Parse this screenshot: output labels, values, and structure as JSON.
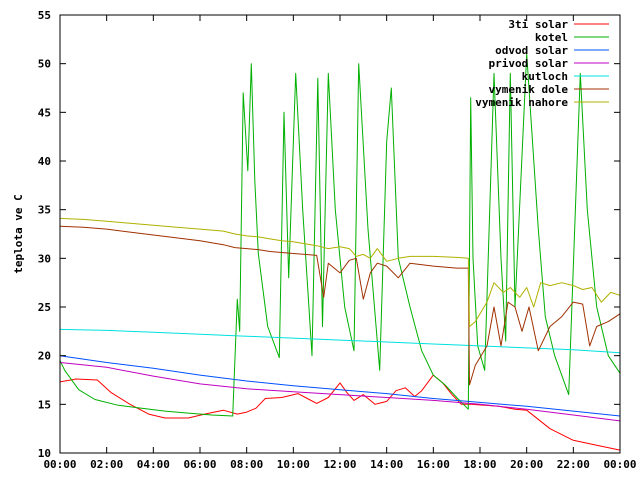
{
  "chart_data": {
    "type": "line",
    "title": "",
    "xlabel": "",
    "ylabel": "teplota ve C",
    "xlim": [
      0,
      24
    ],
    "ylim": [
      10,
      55
    ],
    "xticks": [
      "00:00",
      "02:00",
      "04:00",
      "06:00",
      "08:00",
      "10:00",
      "12:00",
      "14:00",
      "16:00",
      "18:00",
      "20:00",
      "22:00",
      "00:00"
    ],
    "yticks": [
      "10",
      "15",
      "20",
      "25",
      "30",
      "35",
      "40",
      "45",
      "50",
      "55"
    ],
    "grid": false,
    "legend_position": "top-right",
    "series": [
      {
        "name": "3ti solar",
        "color": "#ff0000",
        "x": [
          0,
          0.7,
          1.6,
          2.2,
          3.0,
          3.8,
          4.5,
          5.5,
          6.2,
          7.0,
          7.6,
          8.0,
          8.4,
          8.8,
          9.5,
          10.2,
          10.6,
          11.0,
          11.5,
          12.0,
          12.3,
          12.6,
          13.0,
          13.5,
          14.0,
          14.4,
          14.8,
          15.2,
          15.5,
          16.0,
          16.4,
          16.8,
          17.2,
          17.6,
          18.2,
          18.8,
          19.5,
          20.0,
          21.0,
          22.0,
          23.0,
          24
        ],
        "y": [
          17.3,
          17.6,
          17.5,
          16.2,
          15.0,
          14.0,
          13.6,
          13.6,
          14.0,
          14.4,
          14.0,
          14.2,
          14.6,
          15.6,
          15.7,
          16.1,
          15.6,
          15.1,
          15.7,
          17.2,
          16.2,
          15.4,
          16.0,
          15.0,
          15.3,
          16.4,
          16.7,
          15.8,
          16.4,
          18.0,
          17.2,
          16.0,
          15.0,
          15.0,
          14.9,
          14.8,
          14.5,
          14.4,
          12.5,
          11.3,
          10.8,
          10.3
        ]
      },
      {
        "name": "kotel",
        "color": "#00b000",
        "x": [
          0,
          0.2,
          0.8,
          1.5,
          2.5,
          3.5,
          4.5,
          5.5,
          6.5,
          7.4,
          7.6,
          7.7,
          7.85,
          8.05,
          8.2,
          8.35,
          8.5,
          8.9,
          9.4,
          9.6,
          9.8,
          10.1,
          10.4,
          10.8,
          11.05,
          11.25,
          11.5,
          11.8,
          12.2,
          12.6,
          12.8,
          13.2,
          13.7,
          14.0,
          14.2,
          14.5,
          15.0,
          15.5,
          16.0,
          16.5,
          17.0,
          17.5,
          17.6,
          17.7,
          17.9,
          18.2,
          18.6,
          18.9,
          19.1,
          19.3,
          19.5,
          20.0,
          20.5,
          20.8,
          21.2,
          21.8,
          22.3,
          22.6,
          23.0,
          23.5,
          24
        ],
        "y": [
          19.5,
          18.5,
          16.5,
          15.5,
          14.9,
          14.6,
          14.3,
          14.1,
          13.9,
          13.8,
          25.8,
          22.5,
          47.0,
          39.0,
          50.0,
          38.0,
          30.5,
          23.0,
          19.8,
          45.0,
          28.0,
          49.0,
          35.0,
          20.0,
          48.5,
          23.0,
          49.0,
          35.0,
          25.0,
          20.5,
          50.0,
          33.0,
          18.5,
          42.0,
          47.5,
          30.0,
          25.0,
          20.5,
          18.0,
          17.0,
          15.7,
          14.5,
          46.5,
          30.0,
          21.0,
          18.5,
          49.0,
          30.0,
          21.5,
          49.0,
          25.0,
          51.0,
          33.0,
          24.0,
          20.0,
          16.0,
          49.0,
          35.0,
          25.0,
          20.0,
          18.2
        ]
      },
      {
        "name": "odvod solar",
        "color": "#0050ff",
        "x": [
          0,
          2,
          4,
          6,
          8,
          10,
          12,
          14,
          16,
          18,
          20,
          22,
          24
        ],
        "y": [
          20.0,
          19.3,
          18.7,
          18.0,
          17.4,
          16.9,
          16.5,
          16.1,
          15.6,
          15.2,
          14.8,
          14.3,
          13.8
        ]
      },
      {
        "name": "privod solar",
        "color": "#c000c0",
        "x": [
          0,
          2,
          4,
          6,
          8,
          10,
          12,
          14,
          16,
          18,
          20,
          22,
          24
        ],
        "y": [
          19.3,
          18.8,
          17.9,
          17.1,
          16.6,
          16.3,
          16.0,
          15.7,
          15.4,
          15.0,
          14.5,
          13.9,
          13.3
        ]
      },
      {
        "name": "kutloch",
        "color": "#00e0e0",
        "x": [
          0,
          2,
          4,
          6,
          8,
          10,
          12,
          14,
          16,
          18,
          20,
          22,
          24
        ],
        "y": [
          22.7,
          22.6,
          22.4,
          22.2,
          22.0,
          21.8,
          21.6,
          21.4,
          21.2,
          21.0,
          20.8,
          20.6,
          20.3
        ]
      },
      {
        "name": "vymenik dole",
        "color": "#a03000",
        "x": [
          0,
          1,
          2,
          3,
          4,
          5,
          6,
          7,
          7.5,
          8,
          8.5,
          9,
          9.5,
          10,
          10.5,
          11,
          11.3,
          11.5,
          12,
          12.4,
          12.7,
          13,
          13.3,
          13.6,
          14,
          14.5,
          15,
          16,
          17,
          17.5,
          17.55,
          17.8,
          18.3,
          18.6,
          18.9,
          19.2,
          19.5,
          19.8,
          20.1,
          20.5,
          21,
          21.5,
          22,
          22.4,
          22.7,
          23,
          23.5,
          24
        ],
        "y": [
          33.3,
          33.2,
          33.0,
          32.7,
          32.4,
          32.1,
          31.8,
          31.4,
          31.1,
          31.0,
          30.9,
          30.7,
          30.6,
          30.5,
          30.4,
          30.3,
          26.0,
          29.5,
          28.5,
          29.8,
          30.0,
          25.8,
          28.5,
          29.5,
          29.2,
          28.0,
          29.5,
          29.2,
          29.0,
          29.0,
          17.0,
          19.0,
          21.0,
          25.0,
          21.0,
          25.5,
          25.0,
          22.5,
          25.0,
          20.5,
          23.0,
          24.0,
          25.5,
          25.3,
          21.0,
          23.0,
          23.5,
          24.3
        ]
      },
      {
        "name": "vymenik nahore",
        "color": "#b0b000",
        "x": [
          0,
          1,
          2,
          3,
          4,
          5,
          6,
          7,
          7.5,
          8,
          8.5,
          9,
          9.5,
          10,
          10.5,
          11,
          11.5,
          12,
          12.4,
          12.7,
          13,
          13.3,
          13.6,
          14,
          14.5,
          15,
          16,
          17,
          17.5,
          17.55,
          17.8,
          18.3,
          18.6,
          19,
          19.3,
          19.7,
          20,
          20.3,
          20.6,
          21,
          21.5,
          22,
          22.4,
          22.8,
          23.2,
          23.6,
          24
        ],
        "y": [
          34.1,
          34.0,
          33.8,
          33.6,
          33.4,
          33.2,
          33.0,
          32.8,
          32.5,
          32.3,
          32.2,
          32.0,
          31.8,
          31.7,
          31.5,
          31.3,
          31.0,
          31.2,
          31.0,
          30.2,
          30.4,
          30.0,
          31.0,
          29.7,
          30.0,
          30.2,
          30.2,
          30.1,
          30.0,
          23.0,
          23.5,
          25.5,
          27.5,
          26.5,
          27.0,
          26.0,
          27.0,
          25.0,
          27.5,
          27.2,
          27.5,
          27.2,
          26.8,
          27.0,
          25.5,
          26.5,
          26.2
        ]
      }
    ]
  }
}
